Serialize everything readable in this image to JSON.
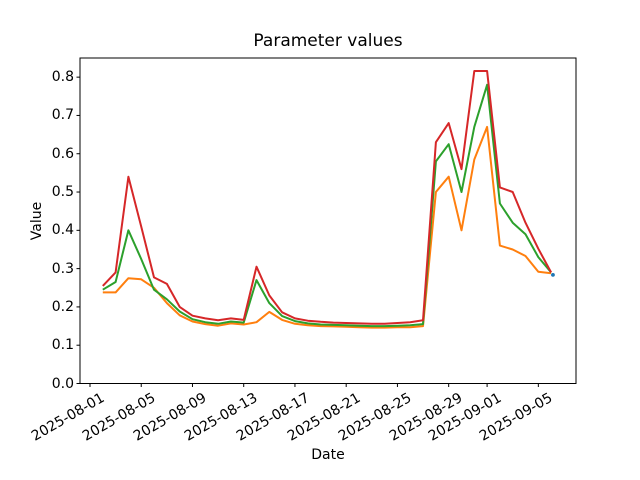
{
  "chart_data": {
    "type": "line",
    "title": "Parameter values",
    "xlabel": "Date",
    "ylabel": "Value",
    "grid": false,
    "legend": "none",
    "background": "#ffffff",
    "axis_color": "#000000",
    "ylim": [
      0.0,
      0.85
    ],
    "xlim_days": [
      -0.78,
      37.94
    ],
    "y_ticks": [
      0.0,
      0.1,
      0.2,
      0.3,
      0.4,
      0.5,
      0.6,
      0.7,
      0.8
    ],
    "x_tick_dates": [
      "2025-08-01",
      "2025-08-05",
      "2025-08-09",
      "2025-08-13",
      "2025-08-17",
      "2025-08-21",
      "2025-08-25",
      "2025-08-29",
      "2025-09-01",
      "2025-09-05"
    ],
    "dates": [
      "2025-08-02",
      "2025-08-03",
      "2025-08-04",
      "2025-08-05",
      "2025-08-06",
      "2025-08-07",
      "2025-08-08",
      "2025-08-09",
      "2025-08-10",
      "2025-08-11",
      "2025-08-12",
      "2025-08-13",
      "2025-08-14",
      "2025-08-15",
      "2025-08-16",
      "2025-08-17",
      "2025-08-18",
      "2025-08-19",
      "2025-08-20",
      "2025-08-21",
      "2025-08-22",
      "2025-08-23",
      "2025-08-24",
      "2025-08-25",
      "2025-08-26",
      "2025-08-27",
      "2025-08-28",
      "2025-08-29",
      "2025-08-30",
      "2025-08-31",
      "2025-09-01",
      "2025-09-02",
      "2025-09-03",
      "2025-09-04",
      "2025-09-05",
      "2025-09-06"
    ],
    "series": [
      {
        "name": "orange-series",
        "color": "#ff7f0e",
        "values": [
          0.238,
          0.238,
          0.275,
          0.272,
          0.25,
          0.21,
          0.178,
          0.162,
          0.155,
          0.151,
          0.157,
          0.154,
          0.16,
          0.187,
          0.166,
          0.156,
          0.152,
          0.15,
          0.149,
          0.148,
          0.147,
          0.146,
          0.146,
          0.147,
          0.147,
          0.15,
          0.5,
          0.54,
          0.4,
          0.585,
          0.67,
          0.36,
          0.35,
          0.333,
          0.292,
          0.288
        ]
      },
      {
        "name": "green-series",
        "color": "#2ca02c",
        "values": [
          0.245,
          0.265,
          0.4,
          0.325,
          0.245,
          0.22,
          0.188,
          0.168,
          0.16,
          0.156,
          0.162,
          0.159,
          0.27,
          0.21,
          0.176,
          0.163,
          0.157,
          0.154,
          0.153,
          0.152,
          0.151,
          0.15,
          0.15,
          0.151,
          0.152,
          0.155,
          0.58,
          0.625,
          0.5,
          0.67,
          0.78,
          0.47,
          0.42,
          0.39,
          0.33,
          0.29
        ]
      },
      {
        "name": "red-series",
        "color": "#d62728",
        "values": [
          0.255,
          0.29,
          0.54,
          0.41,
          0.277,
          0.26,
          0.2,
          0.177,
          0.17,
          0.165,
          0.17,
          0.166,
          0.305,
          0.23,
          0.186,
          0.17,
          0.164,
          0.161,
          0.159,
          0.158,
          0.157,
          0.156,
          0.156,
          0.158,
          0.16,
          0.165,
          0.63,
          0.68,
          0.56,
          0.816,
          0.816,
          0.512,
          0.5,
          0.42,
          0.352,
          0.29
        ]
      }
    ],
    "blue_endpoint": {
      "date": "2025-09-06",
      "value": 0.285,
      "color": "#1f77b4"
    }
  }
}
